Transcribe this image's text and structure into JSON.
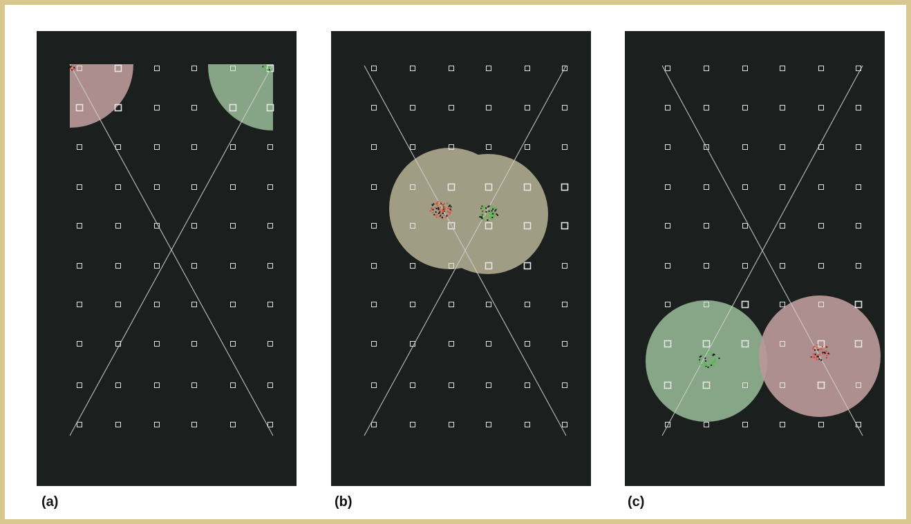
{
  "figure": {
    "border_color": "#d8c890",
    "panel_background": "#1b1f1e",
    "panels": [
      {
        "label": "(a)",
        "regions": [
          {
            "color": "#b89898",
            "name": "red-sensor-coverage",
            "shape": "quarter-disc"
          },
          {
            "color": "#8fb08f",
            "name": "green-sensor-coverage",
            "shape": "quarter-disc"
          }
        ]
      },
      {
        "label": "(b)",
        "regions": [
          {
            "color": "#a9a38a",
            "name": "merged-coverage",
            "shape": "two-overlapping-discs"
          }
        ]
      },
      {
        "label": "(c)",
        "regions": [
          {
            "color": "#8fb08f",
            "name": "green-sensor-coverage",
            "shape": "disc"
          },
          {
            "color": "#b89898",
            "name": "red-sensor-coverage",
            "shape": "disc"
          }
        ]
      }
    ],
    "grid": {
      "rows": 10,
      "cols": 6,
      "marker": "hollow-square",
      "marker_color": "#e6e6e6"
    },
    "trajectories": {
      "count": 2,
      "color": "#cfcfcf",
      "shape": "crossing-diagonals"
    },
    "particle_colors": {
      "red": "#e0503a",
      "green": "#4fc04a",
      "dark": "#111111"
    }
  }
}
